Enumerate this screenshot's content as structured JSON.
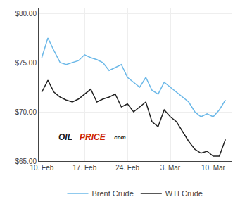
{
  "chart_data": {
    "type": "line",
    "x": [
      0,
      1,
      2,
      3,
      4,
      5,
      6,
      7,
      8,
      9,
      10,
      11,
      12,
      13,
      14,
      15,
      16,
      17,
      18,
      19,
      20,
      21,
      22,
      23,
      24,
      25,
      26,
      27,
      28,
      29,
      30
    ],
    "series": [
      {
        "name": "Brent Crude",
        "color": "#6bb8e8",
        "values": [
          75.5,
          77.5,
          76.2,
          75.0,
          74.8,
          75.0,
          75.2,
          75.8,
          75.5,
          75.3,
          75.0,
          74.2,
          74.5,
          74.8,
          73.5,
          73.0,
          72.5,
          73.5,
          72.2,
          71.8,
          73.0,
          72.5,
          72.0,
          71.5,
          71.0,
          70.0,
          69.5,
          69.8,
          69.5,
          70.2,
          71.2
        ]
      },
      {
        "name": "WTI Crude",
        "color": "#222222",
        "values": [
          72.0,
          73.2,
          72.0,
          71.5,
          71.2,
          71.0,
          71.3,
          71.8,
          72.3,
          71.0,
          71.3,
          71.5,
          71.8,
          70.5,
          70.8,
          70.0,
          70.5,
          71.0,
          69.0,
          68.5,
          70.2,
          69.5,
          69.0,
          68.0,
          67.0,
          66.2,
          65.8,
          66.0,
          65.5,
          65.5,
          67.2
        ]
      }
    ],
    "xlim": [
      -0.5,
      31.0
    ],
    "xticks": [
      {
        "value": 0,
        "label": "10. Feb"
      },
      {
        "value": 7,
        "label": "17. Feb"
      },
      {
        "value": 14,
        "label": "24. Feb"
      },
      {
        "value": 21,
        "label": "3. Mar"
      },
      {
        "value": 28,
        "label": "10. Mar"
      }
    ],
    "ylim": [
      65.0,
      80.5
    ],
    "yticks": [
      {
        "value": 65.0,
        "label": "$65.00"
      },
      {
        "value": 70.0,
        "label": "$70.00"
      },
      {
        "value": 75.0,
        "label": "$75.00"
      },
      {
        "value": 80.0,
        "label": "$80.00"
      }
    ],
    "grid": true,
    "legend": "bottom",
    "annotations": [
      {
        "text": "OIL",
        "color": "#1a1a1a"
      },
      {
        "text": "PRICE",
        "color": "#cc2200"
      },
      {
        "text": ".com",
        "color": "#1a1a1a"
      }
    ]
  }
}
